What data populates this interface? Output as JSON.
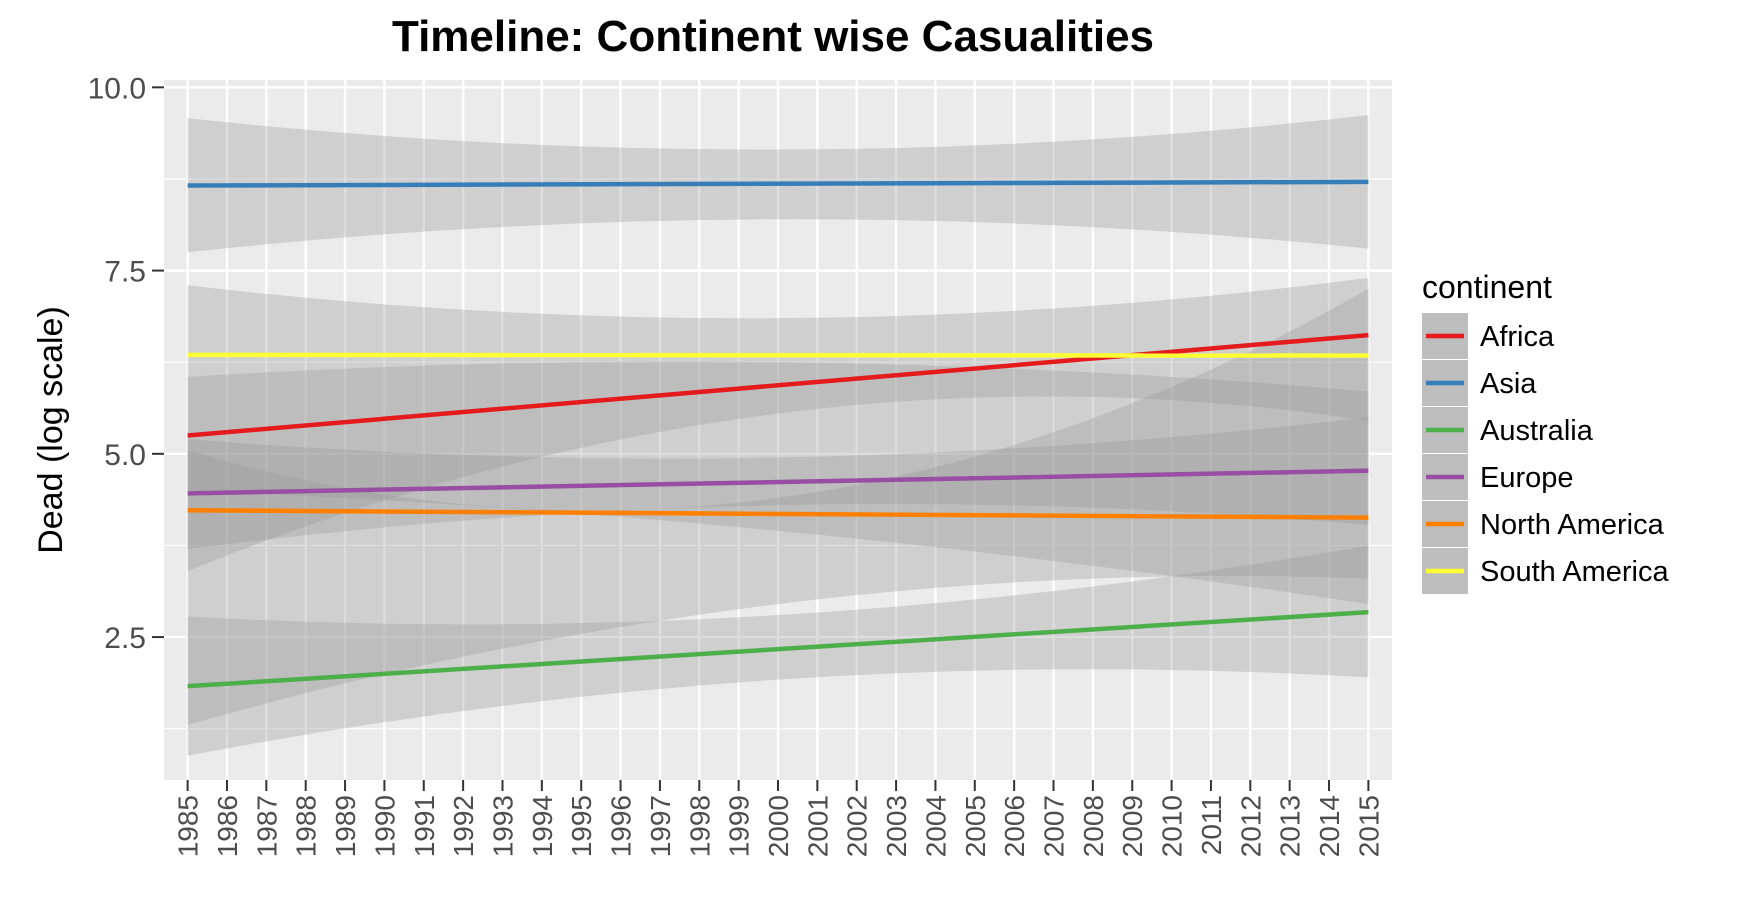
{
  "chart_data": {
    "type": "line",
    "title": "Timeline: Continent wise Casualities",
    "xlabel": "",
    "ylabel": "Dead (log scale)",
    "x": [
      1985,
      1986,
      1987,
      1988,
      1989,
      1990,
      1991,
      1992,
      1993,
      1994,
      1995,
      1996,
      1997,
      1998,
      1999,
      2000,
      2001,
      2002,
      2003,
      2004,
      2005,
      2006,
      2007,
      2008,
      2009,
      2010,
      2011,
      2012,
      2013,
      2014,
      2015
    ],
    "x_tick_labels": [
      "1985",
      "1986",
      "1987",
      "1988",
      "1989",
      "1990",
      "1991",
      "1992",
      "1993",
      "1994",
      "1995",
      "1996",
      "1997",
      "1998",
      "1999",
      "2000",
      "2001",
      "2002",
      "2003",
      "2004",
      "2005",
      "2006",
      "2007",
      "2008",
      "2009",
      "2010",
      "2011",
      "2012",
      "2013",
      "2014",
      "2015"
    ],
    "xlim": [
      1984.4,
      2015.6
    ],
    "ylim": [
      0.55,
      10.1
    ],
    "y_ticks": [
      2.5,
      5.0,
      7.5,
      10.0
    ],
    "y_tick_labels": [
      "2.5",
      "5.0",
      "7.5",
      "10.0"
    ],
    "grid": true,
    "legend_title": "continent",
    "legend_position": "right",
    "confidence_band_color": "#999999",
    "panel_background": "#ebebeb",
    "series": [
      {
        "name": "Africa",
        "color": "#e41a1c",
        "y_start": 5.25,
        "y_end": 6.62,
        "ci_lower": [
          {
            "x": 1985,
            "y": 3.4
          },
          {
            "x": 2000,
            "y": 5.55
          },
          {
            "x": 2015,
            "y": 5.45
          }
        ],
        "ci_upper": [
          {
            "x": 1985,
            "y": 7.3
          },
          {
            "x": 2000,
            "y": 6.85
          },
          {
            "x": 2015,
            "y": 7.4
          }
        ]
      },
      {
        "name": "Asia",
        "color": "#377eb8",
        "y_start": 8.66,
        "y_end": 8.71,
        "ci_lower": [
          {
            "x": 1985,
            "y": 7.75
          },
          {
            "x": 2000,
            "y": 8.2
          },
          {
            "x": 2015,
            "y": 7.8
          }
        ],
        "ci_upper": [
          {
            "x": 1985,
            "y": 9.58
          },
          {
            "x": 2000,
            "y": 9.15
          },
          {
            "x": 2015,
            "y": 9.62
          }
        ]
      },
      {
        "name": "Australia",
        "color": "#4daf4a",
        "y_start": 1.83,
        "y_end": 2.84,
        "ci_lower": [
          {
            "x": 1985,
            "y": 0.88
          },
          {
            "x": 2000,
            "y": 1.92
          },
          {
            "x": 2015,
            "y": 1.95
          }
        ],
        "ci_upper": [
          {
            "x": 1985,
            "y": 2.78
          },
          {
            "x": 2000,
            "y": 2.8
          },
          {
            "x": 2015,
            "y": 3.75
          }
        ]
      },
      {
        "name": "Europe",
        "color": "#984ea3",
        "y_start": 4.46,
        "y_end": 4.77,
        "ci_lower": [
          {
            "x": 1985,
            "y": 3.7
          },
          {
            "x": 2000,
            "y": 4.3
          },
          {
            "x": 2015,
            "y": 4.03
          }
        ],
        "ci_upper": [
          {
            "x": 1985,
            "y": 5.2
          },
          {
            "x": 2000,
            "y": 4.95
          },
          {
            "x": 2015,
            "y": 5.5
          }
        ]
      },
      {
        "name": "North America",
        "color": "#ff7f00",
        "y_start": 4.23,
        "y_end": 4.13,
        "ci_lower": [
          {
            "x": 1985,
            "y": 1.3
          },
          {
            "x": 2000,
            "y": 2.95
          },
          {
            "x": 2015,
            "y": 3.3
          }
        ],
        "ci_upper": [
          {
            "x": 1985,
            "y": 5.05
          },
          {
            "x": 2000,
            "y": 4.4
          },
          {
            "x": 2015,
            "y": 7.25
          }
        ]
      },
      {
        "name": "South America",
        "color": "#ffff33",
        "y_start": 6.35,
        "y_end": 6.34,
        "ci_lower": [
          {
            "x": 1985,
            "y": 4.5
          },
          {
            "x": 2000,
            "y": 3.95
          },
          {
            "x": 2015,
            "y": 2.95
          }
        ],
        "ci_upper": [
          {
            "x": 1985,
            "y": 6.05
          },
          {
            "x": 2000,
            "y": 6.25
          },
          {
            "x": 2015,
            "y": 5.85
          }
        ]
      }
    ]
  }
}
